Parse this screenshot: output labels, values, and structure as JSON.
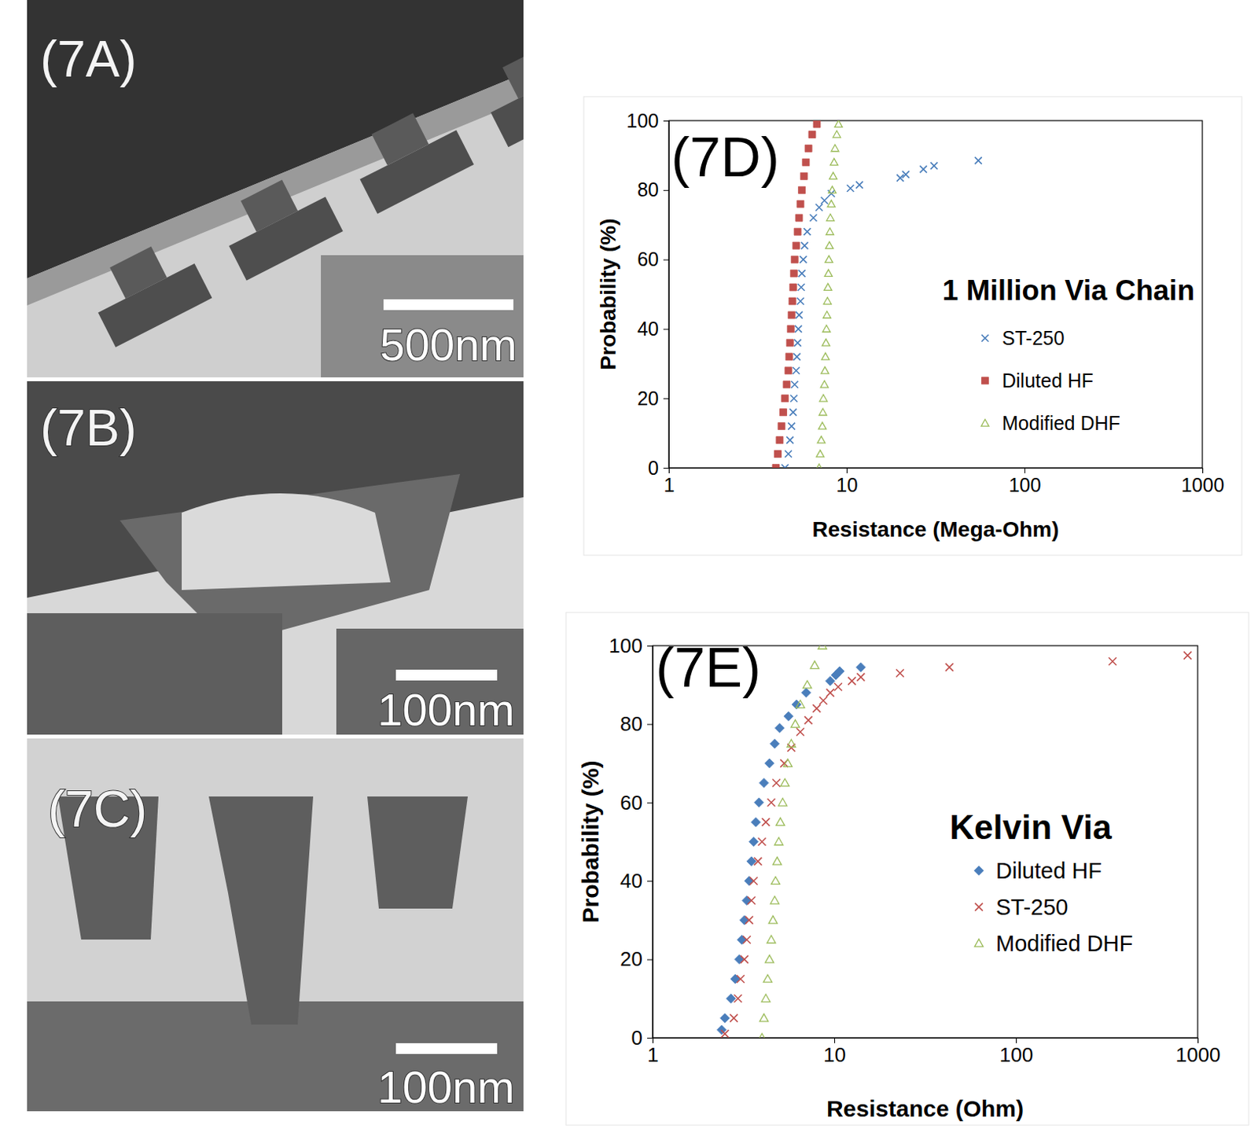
{
  "panels": [
    {
      "label": "(7A)",
      "scale_bar": "500nm"
    },
    {
      "label": "(7B)",
      "scale_bar": "100nm"
    },
    {
      "label": "(7C)",
      "scale_bar": "100nm"
    }
  ],
  "chart_data": [
    {
      "type": "scatter",
      "title": "(7D)",
      "subtitle": "1 Million Via Chain",
      "x_label": "Resistance (Mega-Ohm)",
      "y_label": "Probability (%)",
      "xlim": [
        1,
        1000
      ],
      "ylim": [
        0,
        100
      ],
      "xticks": [
        1,
        10,
        100,
        1000
      ],
      "yticks": [
        0,
        20,
        40,
        60,
        80,
        100
      ],
      "log": "x",
      "grid": false,
      "legend": "right",
      "series": [
        {
          "name": "ST-250",
          "color": "#4a7ebb",
          "marker": "x",
          "x": [
            4.5,
            4.7,
            4.8,
            4.9,
            5.0,
            5.05,
            5.1,
            5.2,
            5.25,
            5.3,
            5.35,
            5.4,
            5.5,
            5.55,
            5.6,
            5.7,
            5.8,
            6.0,
            6.5,
            7.0,
            7.5,
            8.2,
            10.5,
            11.8,
            20,
            21.5,
            27,
            31,
            55
          ],
          "values": [
            0,
            4,
            8,
            12,
            16,
            20,
            24,
            28,
            32,
            36,
            40,
            44,
            48,
            52,
            56,
            60,
            64,
            68,
            72,
            75,
            77,
            79,
            80.5,
            81.5,
            83.5,
            84.5,
            86,
            87,
            88.5
          ]
        },
        {
          "name": "Diluted HF",
          "color": "#c0504d",
          "marker": "square",
          "x": [
            4.0,
            4.1,
            4.2,
            4.3,
            4.4,
            4.5,
            4.6,
            4.7,
            4.75,
            4.8,
            4.85,
            4.9,
            4.95,
            5.0,
            5.05,
            5.1,
            5.2,
            5.3,
            5.4,
            5.5,
            5.6,
            5.75,
            5.9,
            6.1,
            6.4,
            6.8
          ],
          "values": [
            0,
            4,
            8,
            12,
            16,
            20,
            24,
            28,
            32,
            36,
            40,
            44,
            48,
            52,
            56,
            60,
            64,
            68,
            72,
            76,
            80,
            84,
            88,
            92,
            96,
            99
          ]
        },
        {
          "name": "Modified DHF",
          "color": "#9bbb59",
          "marker": "triangle",
          "x": [
            7.0,
            7.1,
            7.2,
            7.3,
            7.35,
            7.4,
            7.5,
            7.55,
            7.6,
            7.65,
            7.7,
            7.75,
            7.8,
            7.85,
            7.9,
            7.95,
            8.0,
            8.05,
            8.1,
            8.2,
            8.3,
            8.4,
            8.5,
            8.6,
            8.8,
            9.0
          ],
          "values": [
            0,
            4,
            8,
            12,
            16,
            20,
            24,
            28,
            32,
            36,
            40,
            44,
            48,
            52,
            56,
            60,
            64,
            68,
            72,
            76,
            80,
            84,
            88,
            92,
            96,
            99
          ]
        }
      ]
    },
    {
      "type": "scatter",
      "title": "(7E)",
      "subtitle": "Kelvin Via",
      "x_label": "Resistance (Ohm)",
      "y_label": "Probability (%)",
      "xlim": [
        1,
        1000
      ],
      "ylim": [
        0,
        100
      ],
      "xticks": [
        1,
        10,
        100,
        1000
      ],
      "yticks": [
        0,
        20,
        40,
        60,
        80,
        100
      ],
      "log": "x",
      "grid": false,
      "legend": "right",
      "series": [
        {
          "name": "Diluted HF",
          "color": "#4a7ebb",
          "marker": "diamond",
          "x": [
            2.4,
            2.5,
            2.7,
            2.85,
            3.0,
            3.1,
            3.2,
            3.3,
            3.4,
            3.5,
            3.6,
            3.7,
            3.85,
            4.1,
            4.4,
            4.7,
            5.0,
            5.6,
            6.2,
            7.0,
            9.5,
            10.2,
            10.7,
            14
          ],
          "values": [
            2,
            5,
            10,
            15,
            20,
            25,
            30,
            35,
            40,
            45,
            50,
            55,
            60,
            65,
            70,
            75,
            79,
            82,
            85,
            88,
            91,
            92.5,
            93.5,
            94.5
          ]
        },
        {
          "name": "ST-250",
          "color": "#c0504d",
          "marker": "x",
          "x": [
            2.5,
            2.8,
            2.95,
            3.05,
            3.2,
            3.3,
            3.4,
            3.5,
            3.6,
            3.8,
            4.0,
            4.2,
            4.5,
            4.8,
            5.3,
            5.8,
            6.5,
            7.2,
            8.0,
            8.7,
            9.5,
            10.5,
            12.5,
            14,
            23,
            43,
            340,
            880
          ],
          "values": [
            1,
            5,
            10,
            15,
            20,
            25,
            30,
            35,
            40,
            45,
            50,
            55,
            60,
            65,
            70,
            74,
            78,
            81,
            84,
            86,
            88,
            89.5,
            91,
            92,
            93,
            94.5,
            96,
            97.5
          ]
        },
        {
          "name": "Modified DHF",
          "color": "#9bbb59",
          "marker": "triangle",
          "x": [
            4.0,
            4.1,
            4.2,
            4.3,
            4.4,
            4.5,
            4.6,
            4.7,
            4.75,
            4.85,
            4.95,
            5.05,
            5.2,
            5.35,
            5.55,
            5.8,
            6.1,
            6.5,
            7.1,
            7.8,
            8.6
          ],
          "values": [
            0,
            5,
            10,
            15,
            20,
            25,
            30,
            35,
            40,
            45,
            50,
            55,
            60,
            65,
            70,
            75,
            80,
            85,
            90,
            95,
            100
          ]
        }
      ]
    }
  ]
}
